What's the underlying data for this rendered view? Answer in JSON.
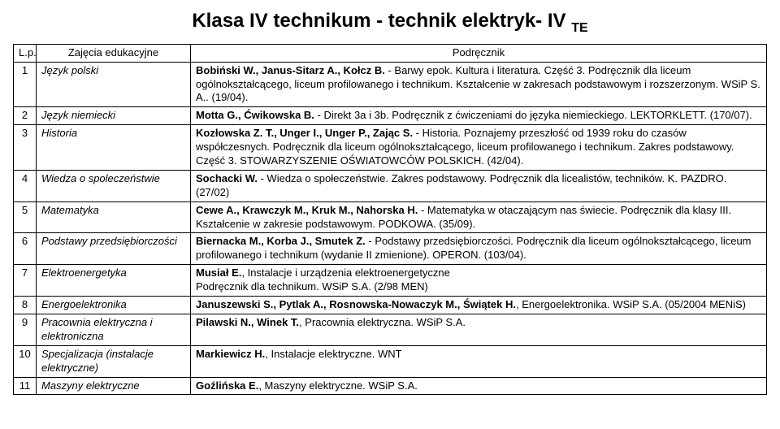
{
  "title_main": "Klasa IV technikum - technik elektryk- IV ",
  "title_sub": "TE",
  "columns": {
    "lp": "L.p.",
    "subject": "Zajęcia edukacyjne",
    "textbook": "Podręcznik"
  },
  "rows": [
    {
      "lp": "1",
      "subject": "Język polski",
      "parts": [
        {
          "b": true,
          "t": "Bobiński W., Janus-Sitarz A., Kołcz B."
        },
        {
          "b": false,
          "t": " - Barwy epok. Kultura i literatura. Część 3. Podręcznik dla liceum ogólnokształcącego, liceum profilowanego i technikum. Kształcenie w zakresach podstawowym i rozszerzonym. WSiP S. A.. (19/04)."
        }
      ]
    },
    {
      "lp": "2",
      "subject": "Język niemiecki",
      "parts": [
        {
          "b": true,
          "t": "Motta G., Ćwikowska B."
        },
        {
          "b": false,
          "t": " - Direkt 3a i 3b. Podręcznik z ćwiczeniami do języka niemieckiego. LEKTORKLETT. (170/07)."
        }
      ]
    },
    {
      "lp": "3",
      "subject": "Historia",
      "parts": [
        {
          "b": true,
          "t": "Kozłowska Z. T., Unger I., Unger P., Zając S."
        },
        {
          "b": false,
          "t": " - Historia. Poznajemy przeszłość od 1939 roku do czasów współczesnych. Podręcznik dla liceum ogólnokształcącego, liceum profilowanego i technikum. Zakres podstawowy. Część 3. STOWARZYSZENIE OŚWIATOWCÓW POLSKICH. (42/04)."
        }
      ]
    },
    {
      "lp": "4",
      "subject": "Wiedza o spoleczeństwie",
      "parts": [
        {
          "b": true,
          "t": "Sochacki W."
        },
        {
          "b": false,
          "t": " - Wiedza o społeczeństwie. Zakres podstawowy. Podręcznik dla licealistów, techników. K. PAZDRO. (27/02)"
        }
      ]
    },
    {
      "lp": "5",
      "subject": "Matematyka",
      "parts": [
        {
          "b": true,
          "t": "Cewe A., Krawczyk M., Kruk M., Nahorska H."
        },
        {
          "b": false,
          "t": " - Matematyka w otaczającym nas świecie. Podręcznik dla klasy III. Kształcenie w zakresie podstawowym. PODKOWA. (35/09)."
        }
      ]
    },
    {
      "lp": "6",
      "subject": "Podstawy przedsiębiorczości",
      "parts": [
        {
          "b": true,
          "t": "Biernacka M., Korba J., Smutek Z."
        },
        {
          "b": false,
          "t": " - Podstawy przedsiębiorczości. Podręcznik dla liceum ogólnokształcącego, liceum profilowanego i technikum (wydanie II zmienione). OPERON. (103/04)."
        }
      ]
    },
    {
      "lp": "7",
      "subject": "Elektroenergetyka",
      "parts": [
        {
          "b": true,
          "t": "Musiał E."
        },
        {
          "b": false,
          "t": ", Instalacje i urządzenia elektroenergetyczne\nPodręcznik dla technikum. WSiP S.A. (2/98 MEN)"
        }
      ]
    },
    {
      "lp": "8",
      "subject": "Energoelektronika",
      "parts": [
        {
          "b": true,
          "t": "Januszewski S., Pytlak A., Rosnowska-Nowaczyk M., Świątek H."
        },
        {
          "b": false,
          "t": ", Energoelektronika. WSiP S.A. (05/2004 MENiS)"
        }
      ]
    },
    {
      "lp": "9",
      "subject": "Pracownia elektryczna i elektroniczna",
      "parts": [
        {
          "b": true,
          "t": "Pilawski N., Winek T."
        },
        {
          "b": false,
          "t": ", Pracownia elektryczna. WSiP S.A."
        }
      ]
    },
    {
      "lp": "10",
      "subject": "Specjalizacja (instalacje elektryczne)",
      "parts": [
        {
          "b": true,
          "t": "Markiewicz H."
        },
        {
          "b": false,
          "t": ", Instalacje elektryczne. WNT"
        }
      ]
    },
    {
      "lp": "11",
      "subject": "Maszyny elektryczne",
      "parts": [
        {
          "b": true,
          "t": "Goźlińska E."
        },
        {
          "b": false,
          "t": ", Maszyny elektryczne. WSiP S.A."
        }
      ]
    }
  ]
}
